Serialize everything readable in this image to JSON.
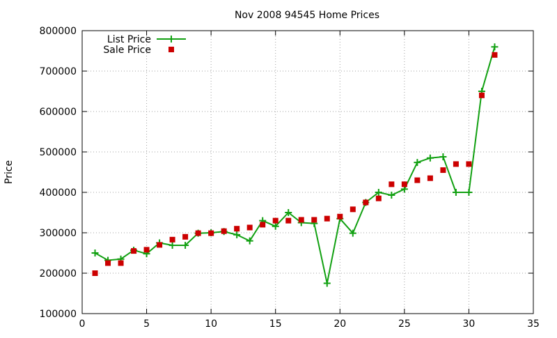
{
  "chart_data": {
    "type": "line",
    "title": "Nov 2008 94545 Home Prices",
    "xlabel": "",
    "ylabel": "Price",
    "xlim": [
      0,
      35
    ],
    "ylim": [
      100000,
      800000
    ],
    "x_ticks": [
      0,
      5,
      10,
      15,
      20,
      25,
      30,
      35
    ],
    "y_ticks": [
      100000,
      200000,
      300000,
      400000,
      500000,
      600000,
      700000,
      800000
    ],
    "x_tick_labels": [
      "0",
      "5",
      "10",
      "15",
      "20",
      "25",
      "30",
      "35"
    ],
    "y_tick_labels": [
      "100000",
      "200000",
      "300000",
      "400000",
      "500000",
      "600000",
      "700000",
      "800000"
    ],
    "grid": true,
    "legend_position": "top-left",
    "series": [
      {
        "name": "List Price",
        "style": "line-with-plus-markers",
        "color": "#11a011",
        "x": [
          1,
          2,
          3,
          4,
          5,
          6,
          7,
          8,
          9,
          10,
          11,
          12,
          13,
          14,
          15,
          16,
          17,
          18,
          19,
          20,
          21,
          22,
          23,
          24,
          25,
          26,
          27,
          28,
          29,
          30,
          31,
          32
        ],
        "values": [
          250000,
          232000,
          235000,
          257000,
          248000,
          275000,
          269000,
          269000,
          299000,
          300000,
          303000,
          295000,
          280000,
          330000,
          316000,
          350000,
          325000,
          323000,
          175000,
          335000,
          299000,
          375000,
          400000,
          393000,
          408000,
          474000,
          485000,
          488000,
          400000,
          400000,
          650000,
          760000
        ]
      },
      {
        "name": "Sale Price",
        "style": "square-markers",
        "color": "#cc0000",
        "x": [
          1,
          2,
          3,
          4,
          5,
          6,
          7,
          8,
          9,
          10,
          11,
          12,
          13,
          14,
          15,
          16,
          17,
          18,
          19,
          20,
          21,
          22,
          23,
          24,
          25,
          26,
          27,
          28,
          29,
          30,
          31,
          32
        ],
        "values": [
          200000,
          225000,
          225000,
          255000,
          258000,
          270000,
          283000,
          290000,
          299000,
          299000,
          304000,
          310000,
          313000,
          320000,
          330000,
          330000,
          332000,
          332000,
          335000,
          340000,
          358000,
          375000,
          385000,
          420000,
          420000,
          430000,
          435000,
          455000,
          470000,
          470000,
          640000,
          740000
        ]
      }
    ]
  }
}
